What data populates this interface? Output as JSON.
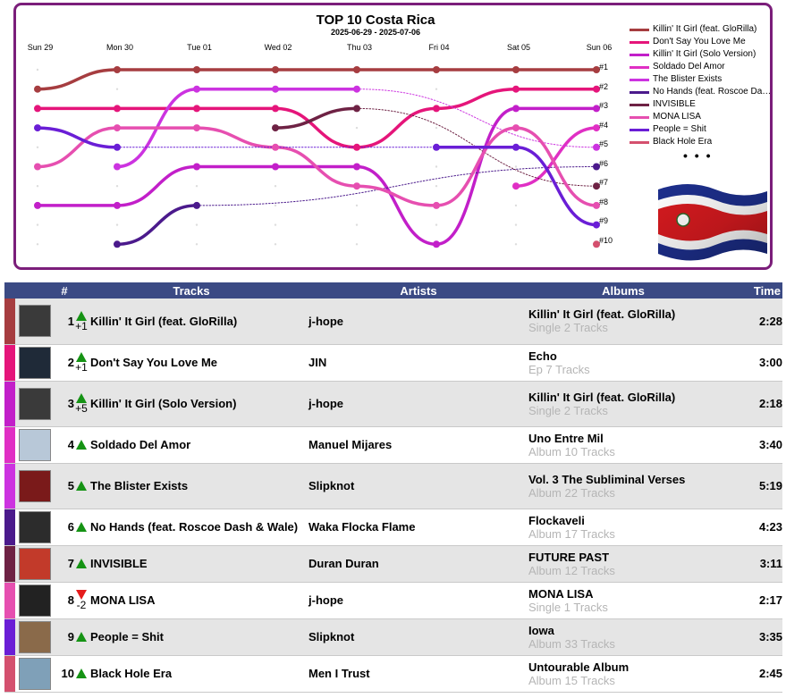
{
  "chart_data": {
    "type": "line",
    "title": "TOP 10 Costa Rica",
    "subtitle": "2025-06-29 - 2025-07-06",
    "x": [
      "Sun 29",
      "Mon 30",
      "Tue 01",
      "Wed 02",
      "Thu 03",
      "Fri 04",
      "Sat 05",
      "Sun 06"
    ],
    "rank_labels": [
      "#1",
      "#2",
      "#3",
      "#4",
      "#5",
      "#6",
      "#7",
      "#8",
      "#9",
      "#10"
    ],
    "ylim": [
      1,
      10
    ],
    "y_inverted": true,
    "legend_position": "right",
    "legend_more": "• • •",
    "series": [
      {
        "name": "Killin' It Girl (feat. GloRilla)",
        "color": "#a63d40",
        "values": [
          2,
          1,
          1,
          1,
          1,
          1,
          1,
          1
        ]
      },
      {
        "name": "Don't Say You Love Me",
        "color": "#e5157a",
        "values": [
          3,
          3,
          3,
          3,
          5,
          3,
          2,
          2
        ]
      },
      {
        "name": "Killin' It Girl (Solo Version)",
        "color": "#c21fc9",
        "values": [
          8,
          8,
          6,
          6,
          6,
          10,
          3,
          3
        ]
      },
      {
        "name": "Soldado Del Amor",
        "color": "#e02fc4",
        "values": [
          null,
          null,
          null,
          null,
          null,
          null,
          7,
          4
        ]
      },
      {
        "name": "The Blister Exists",
        "color": "#cc33e0",
        "values": [
          null,
          6,
          2,
          2,
          2,
          null,
          null,
          5
        ]
      },
      {
        "name": "No Hands (feat. Roscoe Dash & Wale)",
        "color": "#4b1a8c",
        "values": [
          null,
          10,
          8,
          null,
          null,
          null,
          null,
          6
        ]
      },
      {
        "name": "INVISIBLE",
        "color": "#6e2244",
        "values": [
          null,
          null,
          null,
          4,
          3,
          null,
          null,
          7
        ]
      },
      {
        "name": "MONA LISA",
        "color": "#e64fb0",
        "values": [
          6,
          4,
          4,
          5,
          7,
          8,
          4,
          8
        ]
      },
      {
        "name": "People = Shit",
        "color": "#6a1ed6",
        "values": [
          4,
          5,
          null,
          null,
          null,
          5,
          5,
          9
        ]
      },
      {
        "name": "Black Hole Era",
        "color": "#d4506e",
        "values": [
          null,
          null,
          null,
          null,
          null,
          null,
          null,
          10
        ]
      }
    ]
  },
  "flag_colors": {
    "blue": "#1d2f8c",
    "white": "#ffffff",
    "red": "#d61a1f"
  },
  "flag_icon": "costa-rica-flag-icon",
  "table": {
    "headers": {
      "rank": "#",
      "tracks": "Tracks",
      "artists": "Artists",
      "albums": "Albums",
      "time": "Time"
    },
    "rows": [
      {
        "rank": "1",
        "move": "up",
        "delta": "+1",
        "track": "Killin' It Girl (feat. GloRilla)",
        "artist": "j-hope",
        "album": "Killin' It Girl (feat. GloRilla)",
        "album_meta": "Single 2 Tracks",
        "time": "2:28",
        "color": "#a63d40",
        "cover_color": "#3a3a3a"
      },
      {
        "rank": "2",
        "move": "up",
        "delta": "+1",
        "track": "Don't Say You Love Me",
        "artist": "JIN",
        "album": "Echo",
        "album_meta": "Ep 7 Tracks",
        "time": "3:00",
        "color": "#e5157a",
        "cover_color": "#1f2a38"
      },
      {
        "rank": "3",
        "move": "up",
        "delta": "+5",
        "track": "Killin' It Girl (Solo Version)",
        "artist": "j-hope",
        "album": "Killin' It Girl (feat. GloRilla)",
        "album_meta": "Single 2 Tracks",
        "time": "2:18",
        "color": "#c21fc9",
        "cover_color": "#3a3a3a"
      },
      {
        "rank": "4",
        "move": "up",
        "delta": "",
        "track": "Soldado Del Amor",
        "artist": "Manuel Mijares",
        "album": "Uno Entre Mil",
        "album_meta": "Album 10 Tracks",
        "time": "3:40",
        "color": "#e02fc4",
        "cover_color": "#b8c8d8"
      },
      {
        "rank": "5",
        "move": "up",
        "delta": "",
        "track": "The Blister Exists",
        "artist": "Slipknot",
        "album": "Vol. 3 The Subliminal Verses",
        "album_meta": "Album 22 Tracks",
        "time": "5:19",
        "color": "#cc33e0",
        "cover_color": "#7a1a1a"
      },
      {
        "rank": "6",
        "move": "up",
        "delta": "",
        "track": "No Hands (feat. Roscoe Dash & Wale)",
        "artist": "Waka Flocka Flame",
        "album": "Flockaveli",
        "album_meta": "Album 17 Tracks",
        "time": "4:23",
        "color": "#4b1a8c",
        "cover_color": "#2c2c2c"
      },
      {
        "rank": "7",
        "move": "up",
        "delta": "",
        "track": "INVISIBLE",
        "artist": "Duran Duran",
        "album": "FUTURE PAST",
        "album_meta": "Album 12 Tracks",
        "time": "3:11",
        "color": "#6e2244",
        "cover_color": "#c23a2a"
      },
      {
        "rank": "8",
        "move": "down",
        "delta": "-2",
        "track": "MONA LISA",
        "artist": "j-hope",
        "album": "MONA LISA",
        "album_meta": "Single 1 Tracks",
        "time": "2:17",
        "color": "#e64fb0",
        "cover_color": "#222222"
      },
      {
        "rank": "9",
        "move": "up",
        "delta": "",
        "track": "People = Shit",
        "artist": "Slipknot",
        "album": "Iowa",
        "album_meta": "Album 33 Tracks",
        "time": "3:35",
        "color": "#6a1ed6",
        "cover_color": "#8a6a4a"
      },
      {
        "rank": "10",
        "move": "up",
        "delta": "",
        "track": "Black Hole Era",
        "artist": "Men I Trust",
        "album": "Untourable Album",
        "album_meta": "Album 15 Tracks",
        "time": "2:45",
        "color": "#d4506e",
        "cover_color": "#7fa0b8"
      }
    ]
  }
}
